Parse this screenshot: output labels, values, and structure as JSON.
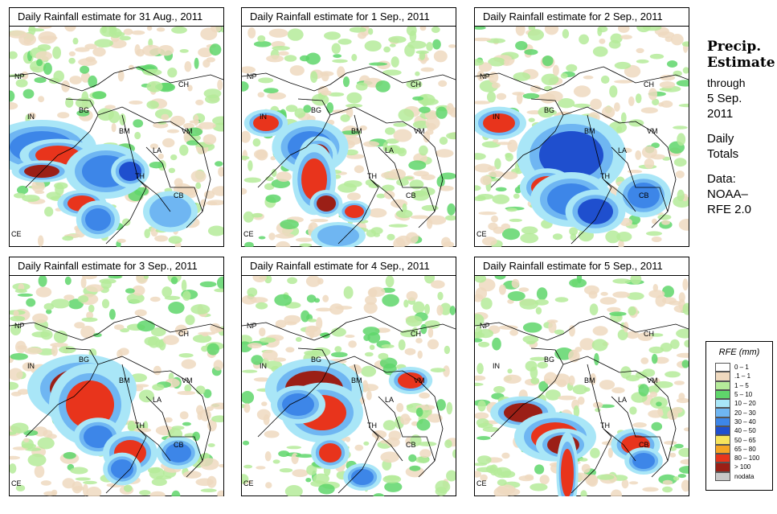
{
  "panels": [
    {
      "title": "Daily Rainfall estimate for  31 Aug., 2011"
    },
    {
      "title": "Daily Rainfall estimate for  1 Sep., 2011"
    },
    {
      "title": "Daily Rainfall estimate for  2 Sep., 2011"
    },
    {
      "title": "Daily Rainfall estimate for  3 Sep., 2011"
    },
    {
      "title": "Daily Rainfall estimate for  4 Sep., 2011"
    },
    {
      "title": "Daily Rainfall estimate for  5 Sep., 2011"
    }
  ],
  "country_labels": [
    "NP",
    "CH",
    "IN",
    "BG",
    "BM",
    "VM",
    "LA",
    "TH",
    "CB",
    "CE"
  ],
  "side": {
    "precip": "Precip.",
    "estimate": "Estimate",
    "through": "through",
    "date_line1": "5 Sep.",
    "date_line2": "2011",
    "daily": "Daily",
    "totals": "Totals",
    "data": "Data:",
    "noaa": "NOAA–",
    "rfe": "RFE 2.0"
  },
  "legend": {
    "title": "RFE (mm)",
    "rows": [
      {
        "label": "0 – 1",
        "color": "#ffffff"
      },
      {
        "label": ".1 – 1",
        "color": "#efd9bf"
      },
      {
        "label": "1 – 5",
        "color": "#b5eb9a"
      },
      {
        "label": "5 – 10",
        "color": "#5fd66b"
      },
      {
        "label": "10 – 20",
        "color": "#a9e6f7"
      },
      {
        "label": "20 – 30",
        "color": "#6fb6f2"
      },
      {
        "label": "30 – 40",
        "color": "#3d86e8"
      },
      {
        "label": "40 – 50",
        "color": "#1f4fce"
      },
      {
        "label": "50 – 65",
        "color": "#f7e45c"
      },
      {
        "label": "65 – 80",
        "color": "#f5a524"
      },
      {
        "label": "80 – 100",
        "color": "#e8341c"
      },
      {
        "label": "> 100",
        "color": "#9b1f16"
      },
      {
        "label": "nodata",
        "color": "#c8c8c8"
      }
    ]
  }
}
